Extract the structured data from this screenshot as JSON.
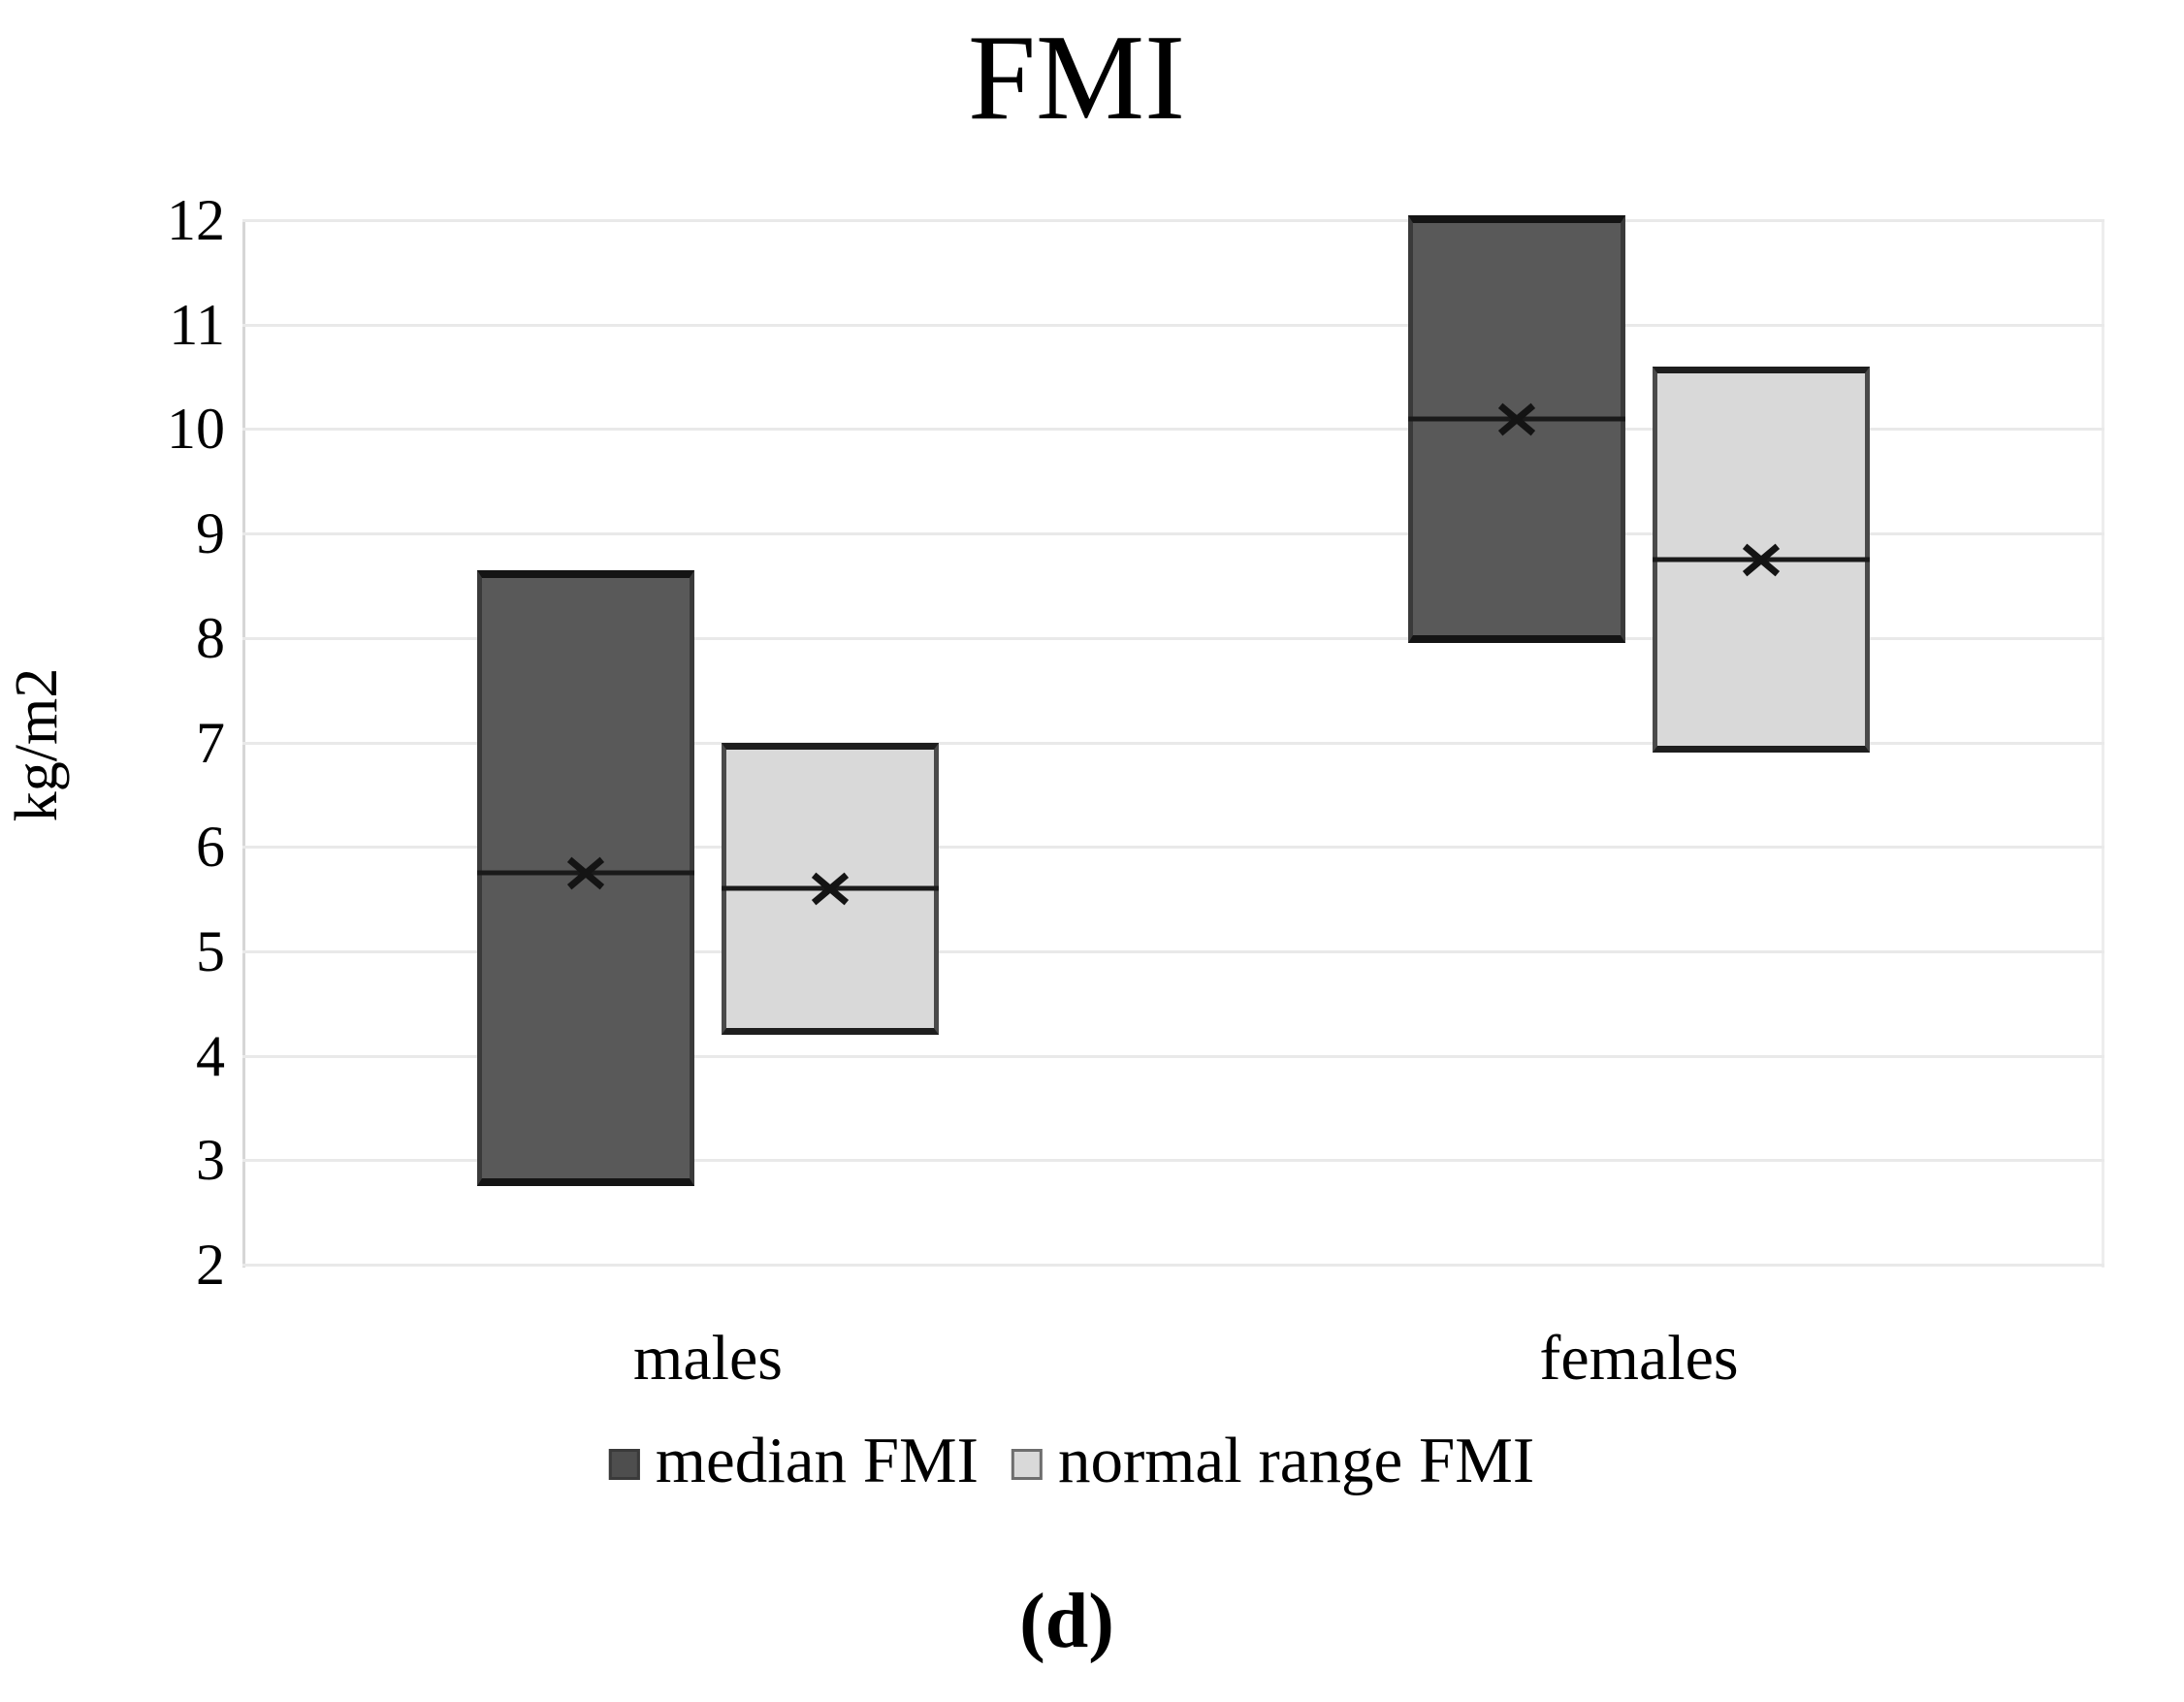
{
  "title": "FMI",
  "caption": "(d)",
  "y_axis": {
    "label": "kg/m2",
    "tick_labels": [
      "12",
      "11",
      "10",
      "9",
      "8",
      "7",
      "6",
      "5",
      "4",
      "3",
      "2"
    ]
  },
  "x_axis": {
    "categories": [
      "males",
      "females"
    ]
  },
  "legend": {
    "items": [
      {
        "label": "median FMI",
        "color": "#595959"
      },
      {
        "label": "normal range FMI",
        "color": "#d9d9d9"
      }
    ]
  },
  "chart_data": {
    "type": "bar",
    "subtype": "floating-range-boxes",
    "title": "FMI",
    "xlabel": "",
    "ylabel": "kg/m2",
    "categories": [
      "males",
      "females"
    ],
    "series": [
      {
        "name": "median FMI",
        "fill": "#595959",
        "values": [
          {
            "category": "males",
            "low": 2.75,
            "high": 8.65,
            "mid": 5.75
          },
          {
            "category": "females",
            "low": 7.95,
            "high": 12.05,
            "mid": 10.1
          }
        ]
      },
      {
        "name": "normal range FMI",
        "fill": "#d9d9d9",
        "values": [
          {
            "category": "males",
            "low": 4.2,
            "high": 7.0,
            "mid": 5.6
          },
          {
            "category": "females",
            "low": 6.9,
            "high": 10.6,
            "mid": 8.75
          }
        ]
      }
    ],
    "ylim": [
      2,
      12
    ],
    "ytick_step": 1,
    "grid": true,
    "gridline_color": "#e9e9e9",
    "legend_position": "bottom",
    "marker": "x-at-mid"
  }
}
